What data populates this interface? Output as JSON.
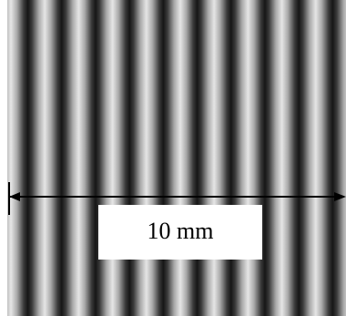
{
  "scale_label": "10 mm"
}
